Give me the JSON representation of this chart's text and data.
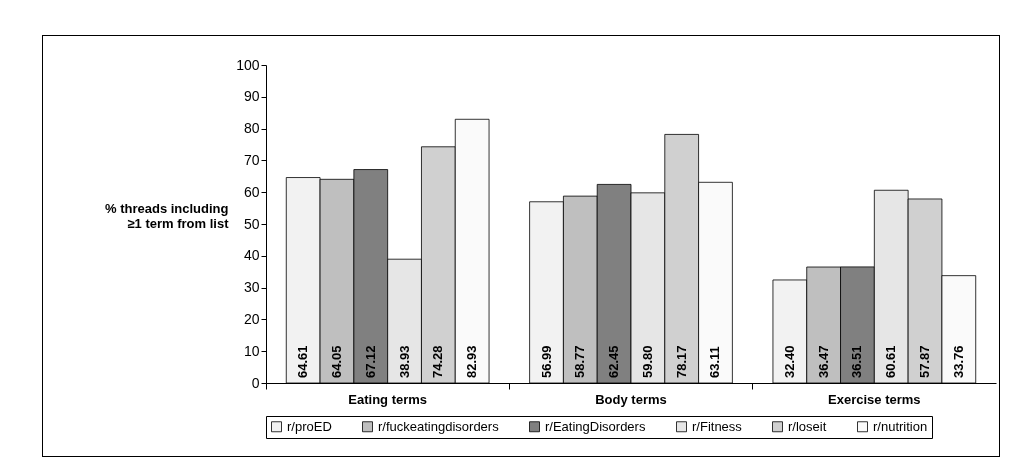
{
  "chart_data": {
    "type": "bar",
    "ylabel": "% threads including\n≥1 term from list",
    "categories": [
      "Eating terms",
      "Body terms",
      "Exercise terms"
    ],
    "series": [
      {
        "name": "r/proED",
        "color": "#f2f2f2",
        "values": [
          64.61,
          56.99,
          32.4
        ],
        "value_labels": [
          "64.61",
          "56.99",
          "32.40"
        ]
      },
      {
        "name": "r/fuckeatingdisorders",
        "color": "#bfbfbf",
        "values": [
          64.05,
          58.77,
          36.47
        ],
        "value_labels": [
          "64.05",
          "58.77",
          "36.47"
        ]
      },
      {
        "name": "r/EatingDisorders",
        "color": "#808080",
        "values": [
          67.12,
          62.45,
          36.51
        ],
        "value_labels": [
          "67.12",
          "62.45",
          "36.51"
        ]
      },
      {
        "name": "r/Fitness",
        "color": "#e6e6e6",
        "values": [
          38.93,
          59.8,
          60.61
        ],
        "value_labels": [
          "38.93",
          "59.80",
          "60.61"
        ]
      },
      {
        "name": "r/loseit",
        "color": "#d0d0d0",
        "values": [
          74.28,
          78.17,
          57.87
        ],
        "value_labels": [
          "74.28",
          "78.17",
          "57.87"
        ]
      },
      {
        "name": "r/nutrition",
        "color": "#fafafa",
        "values": [
          82.93,
          63.11,
          33.76
        ],
        "value_labels": [
          "82.93",
          "63.11",
          "33.76"
        ]
      }
    ],
    "ylim": [
      0,
      100
    ],
    "yticks": [
      0,
      10,
      20,
      30,
      40,
      50,
      60,
      70,
      80,
      90,
      100
    ],
    "grid": false,
    "legend": "bottom"
  }
}
